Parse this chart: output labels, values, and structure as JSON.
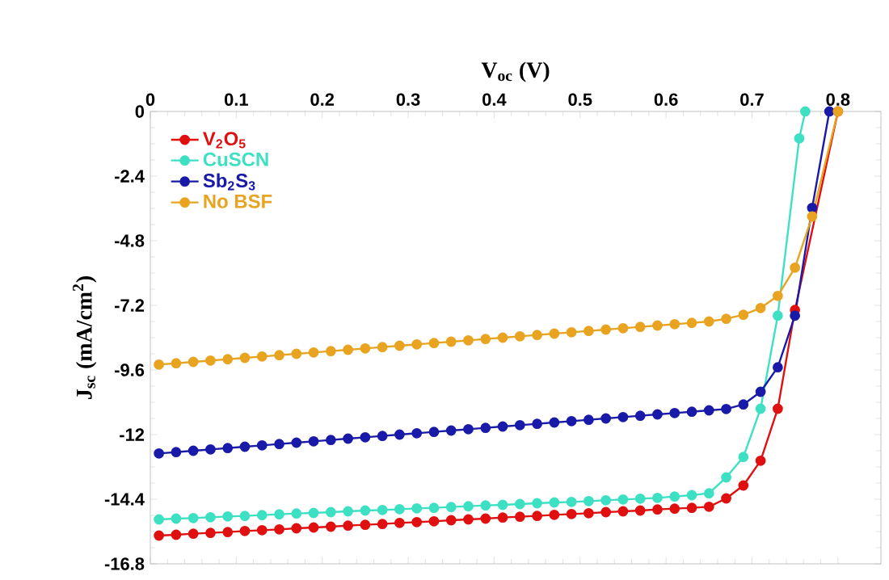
{
  "chart_data": {
    "type": "line",
    "xlabel": "V$_{oc}$ (V)",
    "ylabel": "J$_{sc}$ (mA/cm$^{2}$)",
    "xlim": [
      0,
      0.85
    ],
    "xticks": [
      0,
      0.1,
      0.2,
      0.3,
      0.4,
      0.5,
      0.6,
      0.7,
      0.8
    ],
    "ylim": [
      -16.8,
      0
    ],
    "yticks": [
      -16.8,
      -14.4,
      -12,
      -9.6,
      -7.2,
      -4.8,
      -2.4,
      0
    ],
    "legend": "top left",
    "marker": "circle",
    "line_style": "solid",
    "grid": false,
    "series": [
      {
        "name": "V$_{2}$O$_{5}$",
        "color": "#e01010",
        "x": [
          0.01,
          0.03,
          0.05,
          0.07,
          0.09,
          0.11,
          0.13,
          0.15,
          0.17,
          0.19,
          0.21,
          0.23,
          0.25,
          0.27,
          0.29,
          0.31,
          0.33,
          0.35,
          0.37,
          0.39,
          0.41,
          0.43,
          0.45,
          0.47,
          0.49,
          0.51,
          0.53,
          0.55,
          0.57,
          0.59,
          0.61,
          0.63,
          0.65,
          0.67,
          0.69,
          0.71,
          0.73,
          0.75,
          0.8
        ],
        "values": [
          -15.75,
          -15.72,
          -15.68,
          -15.65,
          -15.62,
          -15.58,
          -15.55,
          -15.52,
          -15.48,
          -15.45,
          -15.42,
          -15.38,
          -15.35,
          -15.32,
          -15.28,
          -15.25,
          -15.22,
          -15.18,
          -15.15,
          -15.12,
          -15.08,
          -15.05,
          -15.02,
          -14.98,
          -14.95,
          -14.92,
          -14.88,
          -14.85,
          -14.82,
          -14.78,
          -14.75,
          -14.72,
          -14.68,
          -14.37,
          -13.89,
          -12.97,
          -11.04,
          -7.37,
          0
        ]
      },
      {
        "name": "CuSCN",
        "color": "#3ee0c4",
        "x": [
          0.01,
          0.03,
          0.05,
          0.07,
          0.09,
          0.11,
          0.13,
          0.15,
          0.17,
          0.19,
          0.21,
          0.23,
          0.25,
          0.27,
          0.29,
          0.31,
          0.33,
          0.35,
          0.37,
          0.39,
          0.41,
          0.43,
          0.45,
          0.47,
          0.49,
          0.51,
          0.53,
          0.55,
          0.57,
          0.59,
          0.61,
          0.63,
          0.65,
          0.67,
          0.69,
          0.71,
          0.73,
          0.755,
          0.762
        ],
        "values": [
          -15.15,
          -15.12,
          -15.1,
          -15.07,
          -15.04,
          -15.02,
          -14.99,
          -14.96,
          -14.93,
          -14.91,
          -14.88,
          -14.85,
          -14.82,
          -14.8,
          -14.77,
          -14.74,
          -14.72,
          -14.69,
          -14.66,
          -14.63,
          -14.61,
          -14.58,
          -14.55,
          -14.52,
          -14.5,
          -14.47,
          -14.44,
          -14.41,
          -14.38,
          -14.35,
          -14.3,
          -14.25,
          -14.18,
          -13.59,
          -12.83,
          -11.04,
          -7.58,
          -1.0,
          0
        ]
      },
      {
        "name": "Sb$_{2}$S$_{3}$",
        "color": "#1a1aa8",
        "x": [
          0.01,
          0.03,
          0.05,
          0.07,
          0.09,
          0.11,
          0.13,
          0.15,
          0.17,
          0.19,
          0.21,
          0.23,
          0.25,
          0.27,
          0.29,
          0.31,
          0.33,
          0.35,
          0.37,
          0.39,
          0.41,
          0.43,
          0.45,
          0.47,
          0.49,
          0.51,
          0.53,
          0.55,
          0.57,
          0.59,
          0.61,
          0.63,
          0.65,
          0.67,
          0.69,
          0.71,
          0.73,
          0.75,
          0.77,
          0.79
        ],
        "values": [
          -12.7,
          -12.65,
          -12.6,
          -12.55,
          -12.5,
          -12.45,
          -12.4,
          -12.35,
          -12.3,
          -12.25,
          -12.2,
          -12.15,
          -12.1,
          -12.05,
          -12.0,
          -11.95,
          -11.9,
          -11.85,
          -11.8,
          -11.75,
          -11.7,
          -11.65,
          -11.6,
          -11.55,
          -11.5,
          -11.45,
          -11.4,
          -11.35,
          -11.3,
          -11.25,
          -11.2,
          -11.15,
          -11.1,
          -11.05,
          -10.88,
          -10.41,
          -9.5,
          -7.58,
          -3.58,
          0
        ]
      },
      {
        "name": "No BSF",
        "color": "#e8a420",
        "x": [
          0.01,
          0.03,
          0.05,
          0.07,
          0.09,
          0.11,
          0.13,
          0.15,
          0.17,
          0.19,
          0.21,
          0.23,
          0.25,
          0.27,
          0.29,
          0.31,
          0.33,
          0.35,
          0.37,
          0.39,
          0.41,
          0.43,
          0.45,
          0.47,
          0.49,
          0.51,
          0.53,
          0.55,
          0.57,
          0.59,
          0.61,
          0.63,
          0.65,
          0.67,
          0.69,
          0.71,
          0.73,
          0.75,
          0.77,
          0.8
        ],
        "values": [
          -9.4,
          -9.35,
          -9.3,
          -9.25,
          -9.2,
          -9.15,
          -9.1,
          -9.05,
          -9.0,
          -8.95,
          -8.9,
          -8.85,
          -8.8,
          -8.75,
          -8.7,
          -8.65,
          -8.6,
          -8.55,
          -8.5,
          -8.45,
          -8.4,
          -8.35,
          -8.3,
          -8.25,
          -8.2,
          -8.15,
          -8.1,
          -8.05,
          -8.0,
          -7.95,
          -7.9,
          -7.85,
          -7.8,
          -7.7,
          -7.55,
          -7.3,
          -6.85,
          -5.8,
          -3.9,
          0
        ]
      }
    ]
  }
}
